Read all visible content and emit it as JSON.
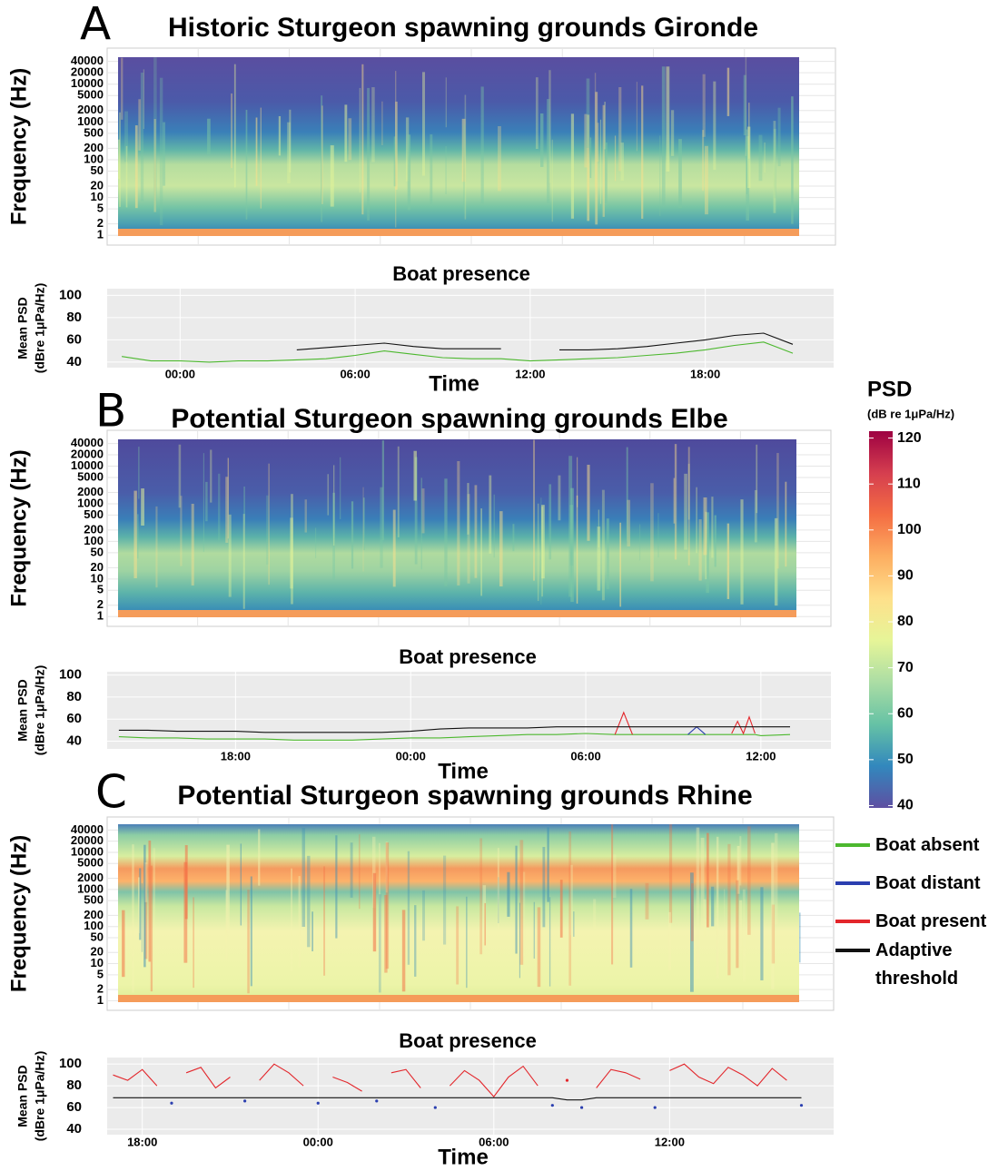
{
  "chart_data": [
    {
      "type": "heatmap",
      "label": "A",
      "title": "Historic Sturgeon spawning grounds Gironde",
      "ylabel": "Frequency (Hz)",
      "log": true,
      "ylim": [
        0.55,
        90000
      ],
      "yticks": [
        1,
        2,
        5,
        10,
        20,
        50,
        100,
        200,
        500,
        1000,
        2000,
        5000,
        10000,
        20000,
        40000
      ]
    },
    {
      "type": "line",
      "title": "Boat presence",
      "xlabel": "Time",
      "ylabel": [
        "Mean PSD",
        "(dBre 1μPa/Hz)"
      ],
      "grid": true,
      "xlim": [
        -2.5,
        22.4
      ],
      "xticks": [
        {
          "value": 0,
          "label": "00:00"
        },
        {
          "value": 6,
          "label": "06:00"
        },
        {
          "value": 12,
          "label": "12:00"
        },
        {
          "value": 18,
          "label": "18:00"
        }
      ],
      "ylim": [
        35,
        106
      ],
      "yticks": [
        40,
        60,
        80,
        100
      ],
      "x": [
        -2,
        -1,
        0,
        1,
        2,
        3,
        4,
        5,
        6,
        7,
        8,
        9,
        10,
        11,
        12,
        13,
        14,
        15,
        16,
        17,
        18,
        19,
        20,
        21
      ],
      "series": [
        {
          "color": "#4cb82e",
          "values": [
            45,
            41,
            41,
            40,
            41,
            41,
            42,
            43,
            46,
            50,
            47,
            44,
            43,
            43,
            41,
            42,
            43,
            44,
            46,
            48,
            51,
            55,
            58,
            48
          ]
        },
        {
          "color": "#111111",
          "values": [
            null,
            null,
            null,
            null,
            null,
            null,
            51,
            53,
            55,
            57,
            54,
            52,
            52,
            52,
            null,
            51,
            51,
            52,
            54,
            57,
            60,
            64,
            66,
            56
          ]
        }
      ]
    },
    {
      "type": "heatmap",
      "label": "B",
      "title": "Potential Sturgeon spawning grounds Elbe",
      "ylabel": "Frequency (Hz)",
      "log": true,
      "ylim": [
        0.55,
        90000
      ],
      "yticks": [
        1,
        2,
        5,
        10,
        20,
        50,
        100,
        200,
        500,
        1000,
        2000,
        5000,
        10000,
        20000,
        40000
      ]
    },
    {
      "type": "line",
      "title": "Boat presence",
      "xlabel": "Time",
      "ylabel": [
        "Mean PSD",
        "(dBre 1μPa/Hz)"
      ],
      "grid": true,
      "xlim": [
        13.6,
        38.4
      ],
      "xticks": [
        {
          "value": 18,
          "label": "18:00"
        },
        {
          "value": 24,
          "label": "00:00"
        },
        {
          "value": 30,
          "label": "06:00"
        },
        {
          "value": 36,
          "label": "12:00"
        }
      ],
      "ylim": [
        33,
        103
      ],
      "yticks": [
        40,
        60,
        80,
        100
      ],
      "x": [
        14,
        15,
        16,
        17,
        18,
        19,
        20,
        21,
        22,
        23,
        24,
        25,
        26,
        27,
        28,
        29,
        30,
        31,
        31.3,
        31.6,
        32,
        33,
        33.5,
        33.8,
        34.1,
        35,
        35.2,
        35.4,
        35.6,
        35.8,
        36,
        37
      ],
      "series": [
        {
          "color": "#4cb82e",
          "values": [
            44,
            43,
            43,
            42,
            42,
            42,
            41,
            41,
            41,
            42,
            43,
            43,
            44,
            45,
            46,
            46,
            47,
            46,
            46,
            46,
            46,
            46,
            46,
            46,
            46,
            46,
            46,
            46,
            46,
            46,
            45,
            46
          ]
        },
        {
          "color": "#2b3fb0",
          "values": [
            null,
            null,
            null,
            null,
            null,
            null,
            null,
            null,
            null,
            null,
            null,
            null,
            null,
            null,
            null,
            null,
            null,
            null,
            null,
            null,
            null,
            null,
            46,
            53,
            46,
            null,
            null,
            null,
            null,
            null,
            null,
            null
          ]
        },
        {
          "color": "#e3262b",
          "values": [
            null,
            null,
            null,
            null,
            null,
            null,
            null,
            null,
            null,
            null,
            null,
            null,
            null,
            null,
            null,
            null,
            null,
            46,
            66,
            46,
            null,
            null,
            null,
            null,
            null,
            47,
            58,
            47,
            62,
            47,
            null,
            null
          ]
        },
        {
          "color": "#111111",
          "values": [
            50,
            50,
            49,
            49,
            49,
            48,
            48,
            48,
            48,
            48,
            49,
            51,
            52,
            52,
            52,
            53,
            53,
            53,
            53,
            53,
            53,
            53,
            53,
            53,
            53,
            53,
            53,
            53,
            53,
            53,
            53,
            53
          ]
        }
      ]
    },
    {
      "type": "heatmap",
      "label": "C",
      "title": "Potential Sturgeon spawning grounds Rhine",
      "ylabel": "Frequency (Hz)",
      "log": true,
      "ylim": [
        0.55,
        90000
      ],
      "yticks": [
        1,
        2,
        5,
        10,
        20,
        50,
        100,
        200,
        500,
        1000,
        2000,
        5000,
        10000,
        20000,
        40000
      ]
    },
    {
      "type": "line",
      "title": "Boat presence",
      "xlabel": "Time",
      "ylabel": [
        "Mean PSD",
        "(dBre 1μPa/Hz)"
      ],
      "grid": true,
      "xlim": [
        16.8,
        41.6
      ],
      "xticks": [
        {
          "value": 18,
          "label": "18:00"
        },
        {
          "value": 24,
          "label": "00:00"
        },
        {
          "value": 30,
          "label": "06:00"
        },
        {
          "value": 36,
          "label": "12:00"
        }
      ],
      "ylim": [
        35,
        106
      ],
      "yticks": [
        40,
        60,
        80,
        100
      ],
      "x": [
        17,
        17.5,
        18,
        18.5,
        19,
        19.5,
        20,
        20.5,
        21,
        21.5,
        22,
        22.5,
        23,
        23.5,
        24,
        24.5,
        25,
        25.5,
        26,
        26.5,
        27,
        27.5,
        28,
        28.5,
        29,
        29.5,
        30,
        30.5,
        31,
        31.5,
        32,
        32.5,
        33,
        33.5,
        34,
        34.5,
        35,
        35.5,
        36,
        36.5,
        37,
        37.5,
        38,
        38.5,
        39,
        39.5,
        40,
        40.5
      ],
      "series": [
        {
          "color": "#e3262b",
          "values": [
            90,
            85,
            95,
            80,
            null,
            92,
            97,
            78,
            88,
            null,
            85,
            100,
            92,
            80,
            null,
            88,
            83,
            75,
            null,
            92,
            95,
            78,
            null,
            80,
            94,
            85,
            70,
            88,
            98,
            80,
            null,
            85,
            null,
            78,
            95,
            92,
            86,
            null,
            94,
            100,
            88,
            82,
            97,
            90,
            80,
            96,
            85,
            null
          ]
        },
        {
          "color": "#2b3fb0",
          "values": [
            null,
            null,
            null,
            null,
            64,
            null,
            null,
            null,
            null,
            66,
            null,
            null,
            null,
            null,
            64,
            null,
            null,
            null,
            66,
            null,
            null,
            null,
            60,
            null,
            null,
            null,
            null,
            null,
            null,
            null,
            62,
            null,
            60,
            null,
            null,
            null,
            null,
            60,
            null,
            null,
            null,
            null,
            null,
            null,
            null,
            null,
            null,
            62
          ]
        },
        {
          "color": "#111111",
          "values": [
            69,
            69,
            69,
            69,
            69,
            69,
            69,
            69,
            69,
            69,
            69,
            69,
            69,
            69,
            69,
            69,
            69,
            69,
            69,
            69,
            69,
            69,
            69,
            69,
            69,
            69,
            69,
            69,
            69,
            69,
            69,
            67,
            67,
            69,
            69,
            69,
            69,
            69,
            69,
            69,
            69,
            69,
            69,
            69,
            69,
            69,
            69,
            69
          ]
        }
      ]
    },
    {
      "type": "colorbar",
      "title": "PSD",
      "subtitle": "(dB re 1μPa/Hz)",
      "ylim": [
        39.5,
        121.5
      ],
      "yticks": [
        40,
        50,
        60,
        70,
        80,
        90,
        100,
        110,
        120
      ],
      "colors": [
        "#5e4fa2",
        "#3288bd",
        "#66c2a5",
        "#abdda4",
        "#e6f598",
        "#fee08b",
        "#fdae61",
        "#f46d43",
        "#d53e4f",
        "#9e0142"
      ]
    },
    {
      "type": "legend",
      "series": [
        {
          "name": "Boat absent",
          "color": "#4cb82e"
        },
        {
          "name": "Boat distant",
          "color": "#2b3fb0"
        },
        {
          "name": "Boat present",
          "color": "#e3262b"
        },
        {
          "name": "Adaptive threshold",
          "color": "#111111"
        }
      ]
    }
  ]
}
